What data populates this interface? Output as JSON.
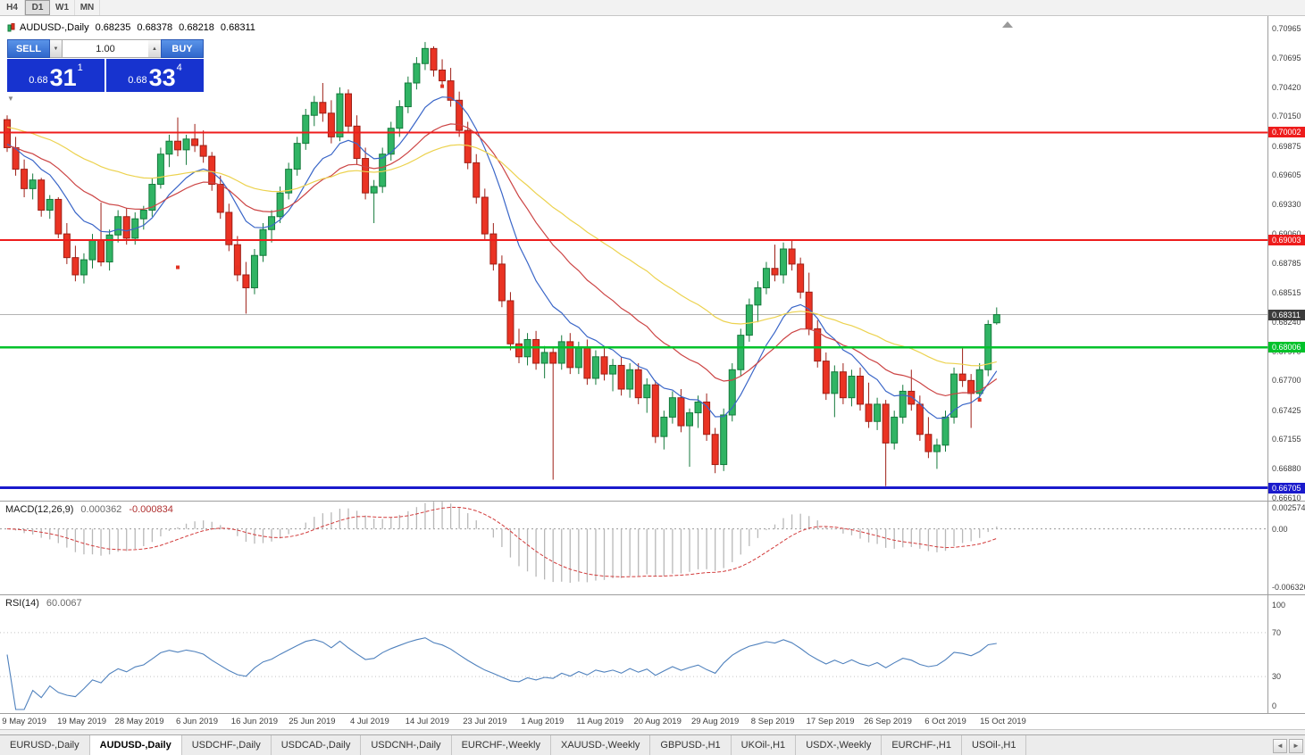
{
  "toolbar": {
    "timeframes": [
      "H4",
      "D1",
      "W1",
      "MN"
    ],
    "active": "D1"
  },
  "chart_info": {
    "title": "AUDUSD-,Daily",
    "open": "0.68235",
    "high": "0.68378",
    "low": "0.68218",
    "close": "0.68311"
  },
  "trade_panel": {
    "sell_label": "SELL",
    "buy_label": "BUY",
    "volume": "1.00",
    "sell_price": {
      "base": "0.68",
      "pips": "31",
      "point": "1"
    },
    "buy_price": {
      "base": "0.68",
      "pips": "33",
      "point": "4"
    }
  },
  "icons": {
    "spinner_down": "▼",
    "spinner_up": "▲",
    "scroll_left": "◄",
    "scroll_right": "►",
    "collapse": "▼"
  },
  "chart_data": {
    "type": "candlestick",
    "symbol": "AUDUSD",
    "timeframe": "Daily",
    "y_axis_labels": [
      "0.70965",
      "0.70695",
      "0.70420",
      "0.70150",
      "0.69875",
      "0.69605",
      "0.69330",
      "0.69060",
      "0.68785",
      "0.68515",
      "0.68240",
      "0.67970",
      "0.67700",
      "0.67425",
      "0.67155",
      "0.66880",
      "0.66610"
    ],
    "x_axis_labels": [
      "9 May 2019",
      "19 May 2019",
      "28 May 2019",
      "6 Jun 2019",
      "16 Jun 2019",
      "25 Jun 2019",
      "4 Jul 2019",
      "14 Jul 2019",
      "23 Jul 2019",
      "1 Aug 2019",
      "11 Aug 2019",
      "20 Aug 2019",
      "29 Aug 2019",
      "8 Sep 2019",
      "17 Sep 2019",
      "26 Sep 2019",
      "6 Oct 2019",
      "15 Oct 2019"
    ],
    "colors": {
      "up": "#30b464",
      "up_border": "#157a3c",
      "down": "#ea3323",
      "down_border": "#9e1f16",
      "ma_fast": "#3a66c8",
      "ma_mid": "#cc4444",
      "ma_slow": "#ecd24e",
      "macd_hist": "#b8b8b8",
      "macd_signal": "#d23b3b",
      "rsi_line": "#4f81bd"
    },
    "candles": [
      [
        0.7012,
        0.7016,
        0.6982,
        0.6986
      ],
      [
        0.6986,
        0.6996,
        0.696,
        0.6966
      ],
      [
        0.6966,
        0.6975,
        0.694,
        0.6948
      ],
      [
        0.6948,
        0.6962,
        0.6938,
        0.6956
      ],
      [
        0.6956,
        0.6958,
        0.6922,
        0.6928
      ],
      [
        0.6928,
        0.6942,
        0.692,
        0.6938
      ],
      [
        0.6938,
        0.694,
        0.6902,
        0.6906
      ],
      [
        0.6906,
        0.6916,
        0.6878,
        0.6884
      ],
      [
        0.6884,
        0.6895,
        0.6862,
        0.6868
      ],
      [
        0.6868,
        0.6888,
        0.686,
        0.6882
      ],
      [
        0.6882,
        0.6906,
        0.6874,
        0.69
      ],
      [
        0.69,
        0.6935,
        0.6876,
        0.688
      ],
      [
        0.688,
        0.691,
        0.6872,
        0.6905
      ],
      [
        0.6905,
        0.6928,
        0.6898,
        0.6922
      ],
      [
        0.6922,
        0.693,
        0.6896,
        0.6902
      ],
      [
        0.6902,
        0.6926,
        0.6896,
        0.692
      ],
      [
        0.692,
        0.6932,
        0.691,
        0.6928
      ],
      [
        0.6928,
        0.6958,
        0.6922,
        0.6952
      ],
      [
        0.6952,
        0.6986,
        0.6948,
        0.698
      ],
      [
        0.698,
        0.6998,
        0.6968,
        0.6992
      ],
      [
        0.6992,
        0.7014,
        0.6978,
        0.6984
      ],
      [
        0.6984,
        0.6998,
        0.697,
        0.6994
      ],
      [
        0.6994,
        0.7008,
        0.6982,
        0.6988
      ],
      [
        0.6988,
        0.7002,
        0.6972,
        0.6978
      ],
      [
        0.6978,
        0.6982,
        0.6946,
        0.6952
      ],
      [
        0.6952,
        0.696,
        0.692,
        0.6926
      ],
      [
        0.6926,
        0.6934,
        0.689,
        0.6896
      ],
      [
        0.6896,
        0.6904,
        0.6862,
        0.6868
      ],
      [
        0.6868,
        0.688,
        0.6832,
        0.6856
      ],
      [
        0.6856,
        0.6892,
        0.685,
        0.6886
      ],
      [
        0.6886,
        0.6916,
        0.688,
        0.691
      ],
      [
        0.691,
        0.6928,
        0.6898,
        0.6922
      ],
      [
        0.6922,
        0.695,
        0.6916,
        0.6944
      ],
      [
        0.6944,
        0.6972,
        0.6938,
        0.6966
      ],
      [
        0.6966,
        0.6996,
        0.696,
        0.699
      ],
      [
        0.699,
        0.7022,
        0.6984,
        0.7016
      ],
      [
        0.7016,
        0.7034,
        0.7006,
        0.7028
      ],
      [
        0.7028,
        0.7046,
        0.701,
        0.7018
      ],
      [
        0.7018,
        0.703,
        0.699,
        0.6996
      ],
      [
        0.6996,
        0.7042,
        0.6992,
        0.7036
      ],
      [
        0.7036,
        0.704,
        0.7,
        0.7006
      ],
      [
        0.7006,
        0.7016,
        0.697,
        0.6976
      ],
      [
        0.6976,
        0.6986,
        0.6938,
        0.6944
      ],
      [
        0.6944,
        0.6956,
        0.6916,
        0.695
      ],
      [
        0.695,
        0.6986,
        0.6944,
        0.698
      ],
      [
        0.698,
        0.701,
        0.6974,
        0.7004
      ],
      [
        0.7004,
        0.703,
        0.6996,
        0.7024
      ],
      [
        0.7024,
        0.7052,
        0.7018,
        0.7046
      ],
      [
        0.7046,
        0.707,
        0.704,
        0.7064
      ],
      [
        0.7064,
        0.7084,
        0.7058,
        0.7078
      ],
      [
        0.7078,
        0.708,
        0.7052,
        0.7058
      ],
      [
        0.7058,
        0.7068,
        0.7042,
        0.7048
      ],
      [
        0.7048,
        0.706,
        0.7024,
        0.703
      ],
      [
        0.703,
        0.7038,
        0.6996,
        0.7002
      ],
      [
        0.7002,
        0.701,
        0.6966,
        0.6972
      ],
      [
        0.6972,
        0.698,
        0.6934,
        0.694
      ],
      [
        0.694,
        0.6948,
        0.69,
        0.6906
      ],
      [
        0.6906,
        0.6916,
        0.6872,
        0.6878
      ],
      [
        0.6878,
        0.6886,
        0.6838,
        0.6844
      ],
      [
        0.6844,
        0.6852,
        0.6798,
        0.6804
      ],
      [
        0.6804,
        0.6818,
        0.6786,
        0.6792
      ],
      [
        0.6792,
        0.6814,
        0.6784,
        0.6808
      ],
      [
        0.6808,
        0.6816,
        0.678,
        0.6786
      ],
      [
        0.6786,
        0.6802,
        0.6772,
        0.6796
      ],
      [
        0.6796,
        0.68,
        0.6678,
        0.6786
      ],
      [
        0.6786,
        0.6812,
        0.678,
        0.6806
      ],
      [
        0.6806,
        0.6814,
        0.6776,
        0.6782
      ],
      [
        0.6782,
        0.6806,
        0.6776,
        0.68
      ],
      [
        0.68,
        0.6808,
        0.6766,
        0.6772
      ],
      [
        0.6772,
        0.6798,
        0.6766,
        0.6792
      ],
      [
        0.6792,
        0.68,
        0.677,
        0.6776
      ],
      [
        0.6776,
        0.679,
        0.676,
        0.6784
      ],
      [
        0.6784,
        0.6792,
        0.6756,
        0.6762
      ],
      [
        0.6762,
        0.6786,
        0.6754,
        0.678
      ],
      [
        0.678,
        0.6786,
        0.6748,
        0.6754
      ],
      [
        0.6754,
        0.6772,
        0.674,
        0.6766
      ],
      [
        0.6766,
        0.677,
        0.6712,
        0.6718
      ],
      [
        0.6718,
        0.6742,
        0.6706,
        0.6736
      ],
      [
        0.6736,
        0.676,
        0.673,
        0.6754
      ],
      [
        0.6754,
        0.6762,
        0.6722,
        0.6728
      ],
      [
        0.6728,
        0.6744,
        0.669,
        0.674
      ],
      [
        0.674,
        0.6756,
        0.6726,
        0.675
      ],
      [
        0.675,
        0.6758,
        0.6714,
        0.672
      ],
      [
        0.672,
        0.6726,
        0.6684,
        0.6692
      ],
      [
        0.6692,
        0.6744,
        0.6686,
        0.6738
      ],
      [
        0.6738,
        0.6786,
        0.6732,
        0.678
      ],
      [
        0.678,
        0.6818,
        0.6774,
        0.6812
      ],
      [
        0.6812,
        0.6846,
        0.6806,
        0.684
      ],
      [
        0.684,
        0.6862,
        0.6824,
        0.6856
      ],
      [
        0.6856,
        0.688,
        0.685,
        0.6874
      ],
      [
        0.6874,
        0.6896,
        0.6862,
        0.6868
      ],
      [
        0.6868,
        0.6898,
        0.686,
        0.6892
      ],
      [
        0.6892,
        0.69,
        0.6872,
        0.6878
      ],
      [
        0.6878,
        0.6884,
        0.6846,
        0.6852
      ],
      [
        0.6852,
        0.687,
        0.6812,
        0.6818
      ],
      [
        0.6818,
        0.6826,
        0.6782,
        0.6788
      ],
      [
        0.6788,
        0.6796,
        0.6752,
        0.6758
      ],
      [
        0.6758,
        0.6784,
        0.6736,
        0.6778
      ],
      [
        0.6778,
        0.6786,
        0.6748,
        0.6754
      ],
      [
        0.6754,
        0.678,
        0.6746,
        0.6774
      ],
      [
        0.6774,
        0.6782,
        0.6742,
        0.6748
      ],
      [
        0.6748,
        0.6768,
        0.6726,
        0.6732
      ],
      [
        0.6732,
        0.6754,
        0.6724,
        0.6748
      ],
      [
        0.6748,
        0.6752,
        0.6672,
        0.6712
      ],
      [
        0.6712,
        0.6742,
        0.6706,
        0.6736
      ],
      [
        0.6736,
        0.6766,
        0.673,
        0.676
      ],
      [
        0.676,
        0.678,
        0.6742,
        0.6748
      ],
      [
        0.6748,
        0.6756,
        0.6714,
        0.672
      ],
      [
        0.672,
        0.6736,
        0.6698,
        0.6704
      ],
      [
        0.6704,
        0.6716,
        0.6688,
        0.671
      ],
      [
        0.671,
        0.6742,
        0.6704,
        0.6736
      ],
      [
        0.6736,
        0.6782,
        0.673,
        0.6776
      ],
      [
        0.6776,
        0.68,
        0.6764,
        0.677
      ],
      [
        0.677,
        0.6776,
        0.6726,
        0.6758
      ],
      [
        0.6758,
        0.6786,
        0.6752,
        0.678
      ],
      [
        0.678,
        0.6826,
        0.6774,
        0.6822
      ],
      [
        0.68235,
        0.68378,
        0.68218,
        0.68311
      ]
    ],
    "moving_averages": [
      {
        "name": "ma-fast-blue",
        "period": 10,
        "seed": 0.699,
        "color": "#3a66c8"
      },
      {
        "name": "ma-mid-red",
        "period": 22,
        "seed": 0.6988,
        "color": "#cc4444"
      },
      {
        "name": "ma-slow-yellow",
        "period": 45,
        "seed": 0.7006,
        "color": "#ecd24e"
      }
    ],
    "horizontal_lines": [
      {
        "price": 0.70002,
        "label": "0.70002",
        "color": "#ee1c1c",
        "width": 2
      },
      {
        "price": 0.69003,
        "label": "0.69003",
        "color": "#ee1c1c",
        "width": 2
      },
      {
        "price": 0.68006,
        "label": "0.68006",
        "color": "#00c22a",
        "width": 2.5
      },
      {
        "price": 0.66705,
        "label": "0.66705",
        "color": "#1a1acc",
        "width": 3
      }
    ],
    "bid_line": {
      "price": 0.68311,
      "label": "0.68311",
      "tag_color": "#3c3c3c",
      "line_color": "#b3b3b3"
    },
    "markers": [
      {
        "index": 20,
        "price": 0.6875
      },
      {
        "index": 27,
        "price": 0.6875
      },
      {
        "index": 51,
        "price": 0.7043
      },
      {
        "index": 114,
        "price": 0.6752
      }
    ],
    "indicators": {
      "macd": {
        "label": "MACD(12,26,9)",
        "values": [
          "0.000362",
          "-0.000834"
        ],
        "fast": 12,
        "slow": 26,
        "signal": 9,
        "scale_max": 0.002574,
        "scale_min": -0.006326,
        "axis": [
          {
            "text": "0.002574",
            "value": 0.002574
          },
          {
            "text": "0.00",
            "value": 0
          },
          {
            "text": "-0.006326",
            "value": -0.006326
          }
        ]
      },
      "rsi": {
        "label": "RSI(14)",
        "value": "60.0067",
        "period": 14,
        "levels": [
          70,
          30
        ],
        "axis": [
          {
            "text": "100",
            "value": 100
          },
          {
            "text": "70",
            "value": 70
          },
          {
            "text": "30",
            "value": 30
          },
          {
            "text": "0",
            "value": 0
          }
        ]
      }
    }
  },
  "tabs": {
    "active_index": 1,
    "items": [
      "EURUSD-,Daily",
      "AUDUSD-,Daily",
      "USDCHF-,Daily",
      "USDCAD-,Daily",
      "USDCNH-,Daily",
      "EURCHF-,Weekly",
      "XAUUSD-,Weekly",
      "GBPUSD-,H1",
      "UKOil-,H1",
      "USDX-,Weekly",
      "EURCHF-,H1",
      "USOil-,H1"
    ]
  }
}
